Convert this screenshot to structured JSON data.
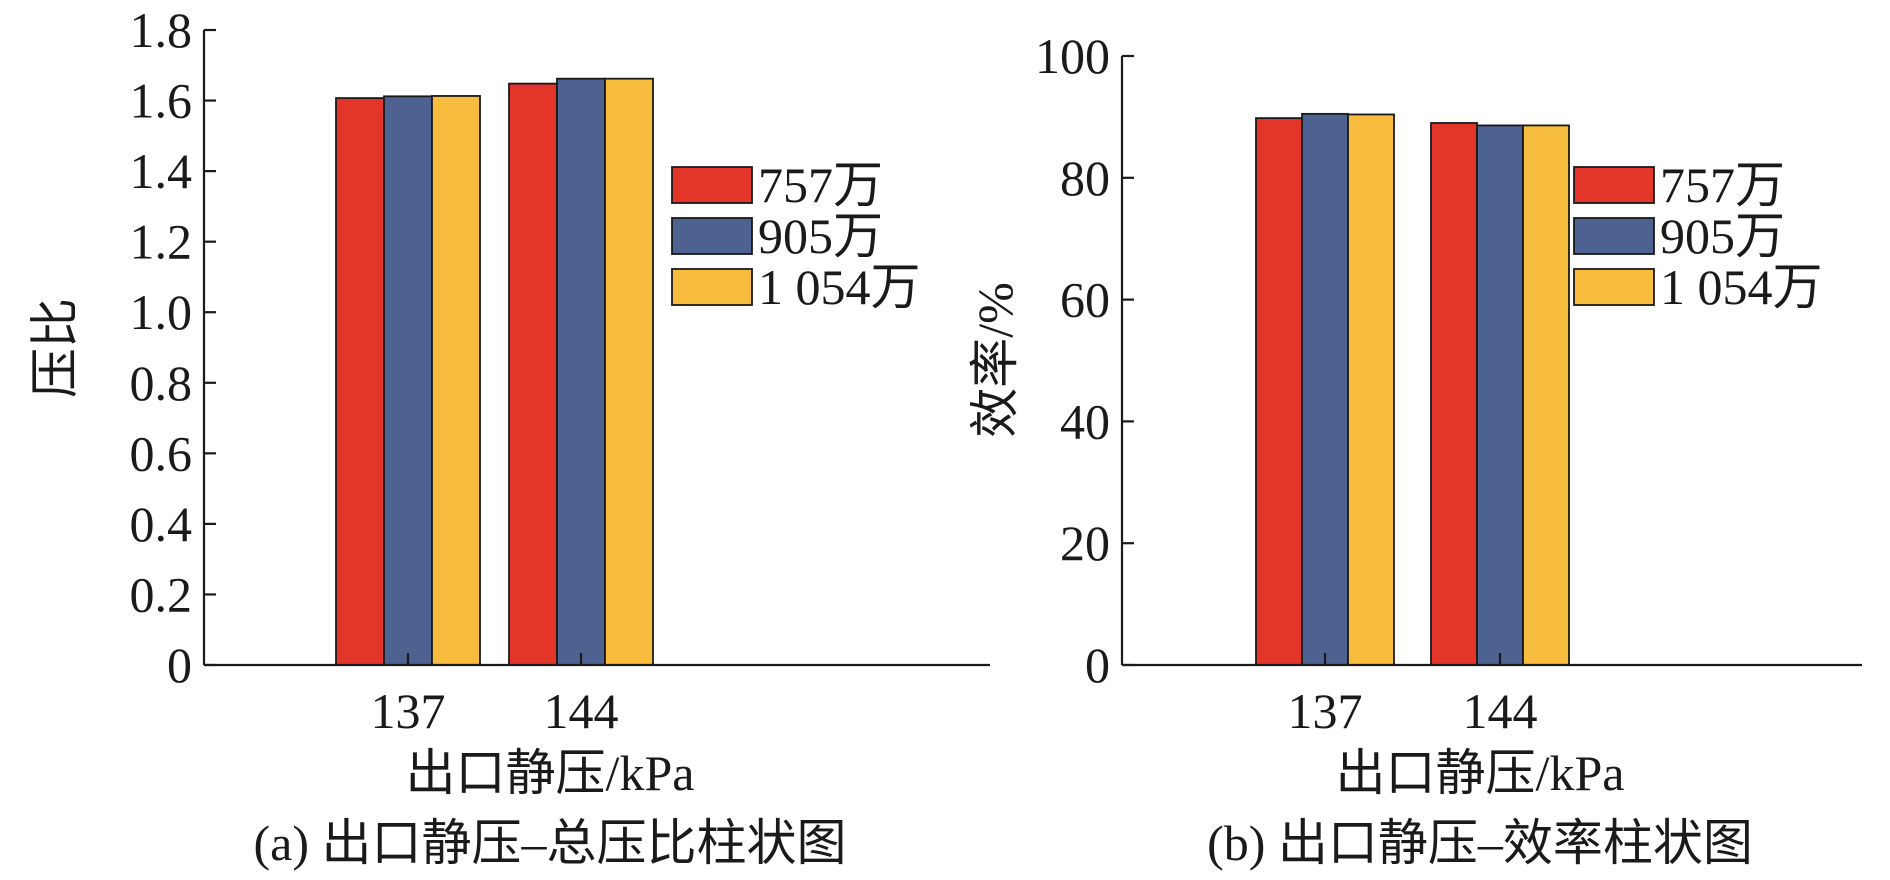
{
  "chart_data": [
    {
      "type": "bar",
      "panel_label": "(a) 出口静压–总压比柱状图",
      "xlabel": "出口静压/kPa",
      "ylabel": "压比",
      "categories": [
        "137",
        "144"
      ],
      "ylim": [
        0,
        1.8
      ],
      "yticks": [
        "0",
        "0.2",
        "0.4",
        "0.6",
        "0.8",
        "1.0",
        "1.2",
        "1.4",
        "1.6",
        "1.8"
      ],
      "grid": false,
      "legend_position": "right",
      "series": [
        {
          "name": "757万",
          "color": "#e4352a",
          "values": [
            1.607,
            1.648
          ]
        },
        {
          "name": "905万",
          "color": "#4d6290",
          "values": [
            1.612,
            1.662
          ]
        },
        {
          "name": "1 054万",
          "color": "#f8bd3e",
          "values": [
            1.613,
            1.662
          ]
        }
      ]
    },
    {
      "type": "bar",
      "panel_label": "(b) 出口静压–效率柱状图",
      "xlabel": "出口静压/kPa",
      "ylabel": "效率/%",
      "categories": [
        "137",
        "144"
      ],
      "ylim": [
        0,
        100
      ],
      "yticks": [
        "0",
        "20",
        "40",
        "60",
        "80",
        "100"
      ],
      "grid": false,
      "legend_position": "right",
      "series": [
        {
          "name": "757万",
          "color": "#e4352a",
          "values": [
            89.8,
            89.0
          ]
        },
        {
          "name": "905万",
          "color": "#4d6290",
          "values": [
            90.5,
            88.6
          ]
        },
        {
          "name": "1 054万",
          "color": "#f8bd3e",
          "values": [
            90.4,
            88.6
          ]
        }
      ]
    }
  ]
}
